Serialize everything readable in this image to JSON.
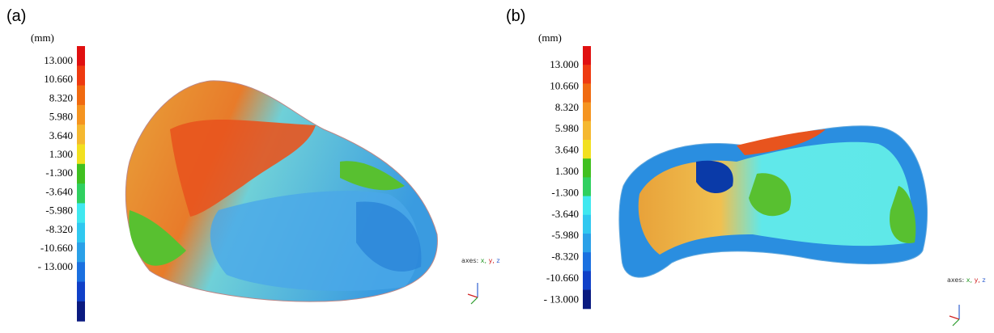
{
  "panels": [
    {
      "label": "(a)",
      "unit": "(mm)",
      "scale_labels": [
        "13.000",
        "10.660",
        "8.320",
        "5.980",
        "3.640",
        "1.300",
        "-1.300",
        "-3.640",
        "-5.980",
        "-8.320",
        "-10.660",
        "- 13.000"
      ],
      "axes_caption": "axes:",
      "axes_letters": [
        "x,",
        "y,",
        "z"
      ]
    },
    {
      "label": "(b)",
      "unit": "(mm)",
      "scale_labels": [
        "13.000",
        "10.660",
        "8.320",
        "5.980",
        "3.640",
        "1.300",
        "-1.300",
        "-3.640",
        "-5.980",
        "-8.320",
        "-10.660",
        "- 13.000"
      ],
      "axes_caption": "axes:",
      "axes_letters": [
        "x,",
        "y,",
        "z"
      ]
    }
  ]
}
